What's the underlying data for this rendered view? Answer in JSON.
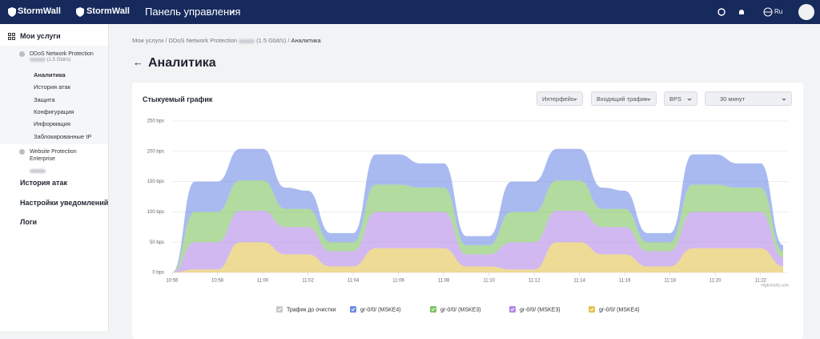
{
  "header": {
    "logo_left": "StormWall",
    "logo_right": "StormWall",
    "panel": "Панель управления",
    "language": "Ru"
  },
  "sidebar": {
    "my_services": "Мои услуги",
    "service1": {
      "name": "DDoS Network Protection",
      "speed": "(1.5 Gbit/s)",
      "items": [
        "Аналитика",
        "История атак",
        "Защита",
        "Конфигурация",
        "Информация",
        "Заблокированные IP"
      ]
    },
    "service2": {
      "name": "Website Protection Enterprise"
    },
    "attack_history": "История атак",
    "notifications": "Настройки уведомлений",
    "logs": "Логи"
  },
  "breadcrumb": [
    "Мои услуги",
    "DDoS Network Protection",
    "(1.5 Gbit/s)",
    "Аналитика"
  ],
  "page_title": "Аналитика",
  "card": {
    "title": "Стыкуемый график",
    "filters": [
      "Интерфейс",
      "Входящий трафик",
      "BPS",
      "30 минут"
    ],
    "credit": "Highcharts.com"
  },
  "chart_data": {
    "type": "stacked_area",
    "x": [
      0,
      1,
      2,
      3,
      4,
      5,
      6,
      7,
      8,
      9,
      10,
      11,
      12,
      13,
      14,
      15,
      16,
      17,
      18,
      19,
      20,
      21,
      22,
      23,
      24,
      25,
      26,
      27
    ],
    "xlim": [
      0,
      27
    ],
    "xticks": [
      {
        "value": 0,
        "label": "10:56"
      },
      {
        "value": 2,
        "label": "10:58"
      },
      {
        "value": 4,
        "label": "11:00"
      },
      {
        "value": 6,
        "label": "11:02"
      },
      {
        "value": 8,
        "label": "11:04"
      },
      {
        "value": 10,
        "label": "11:06"
      },
      {
        "value": 12,
        "label": "11:08"
      },
      {
        "value": 14,
        "label": "11:10"
      },
      {
        "value": 16,
        "label": "11:12"
      },
      {
        "value": 18,
        "label": "11:14"
      },
      {
        "value": 20,
        "label": "11:16"
      },
      {
        "value": 22,
        "label": "11:18"
      },
      {
        "value": 24,
        "label": "11:20"
      },
      {
        "value": 26,
        "label": "11:22"
      }
    ],
    "ylim": [
      0,
      250
    ],
    "yticks": [
      {
        "value": 0,
        "label": "0 bps"
      },
      {
        "value": 50,
        "label": "50 bps"
      },
      {
        "value": 100,
        "label": "100 bps"
      },
      {
        "value": 150,
        "label": "150 bps"
      },
      {
        "value": 200,
        "label": "200 bps"
      },
      {
        "value": 250,
        "label": "250 bps"
      }
    ],
    "grid": true,
    "inactive_legend_item": {
      "name": "Трафик до очистки",
      "color": "#c8c8c8"
    },
    "series": [
      {
        "name": "gr-0/0/ (MSKE4)",
        "color": "#6f8ce6",
        "values": [
          0,
          50,
          50,
          52,
          52,
          35,
          30,
          15,
          15,
          50,
          50,
          40,
          40,
          15,
          15,
          50,
          50,
          52,
          52,
          35,
          30,
          15,
          15,
          50,
          50,
          40,
          40,
          10
        ]
      },
      {
        "name": "gr-0/0/ (MSKE3)",
        "color": "#7dc35f",
        "values": [
          0,
          50,
          50,
          50,
          50,
          30,
          30,
          15,
          15,
          45,
          45,
          40,
          40,
          15,
          15,
          50,
          50,
          50,
          50,
          30,
          30,
          15,
          15,
          45,
          45,
          40,
          40,
          10
        ]
      },
      {
        "name": "gr-0/0/ (MSKE3)",
        "color": "#b488e6",
        "values": [
          0,
          45,
          45,
          52,
          52,
          45,
          45,
          25,
          25,
          60,
          60,
          60,
          60,
          20,
          20,
          45,
          45,
          52,
          52,
          45,
          45,
          25,
          25,
          60,
          60,
          60,
          60,
          15
        ]
      },
      {
        "name": "gr-0/0/ (MSKE4)",
        "color": "#e3c34f",
        "values": [
          0,
          5,
          5,
          50,
          50,
          30,
          30,
          10,
          10,
          40,
          40,
          40,
          40,
          10,
          10,
          5,
          5,
          50,
          50,
          30,
          30,
          10,
          10,
          40,
          40,
          40,
          40,
          10
        ]
      }
    ]
  }
}
